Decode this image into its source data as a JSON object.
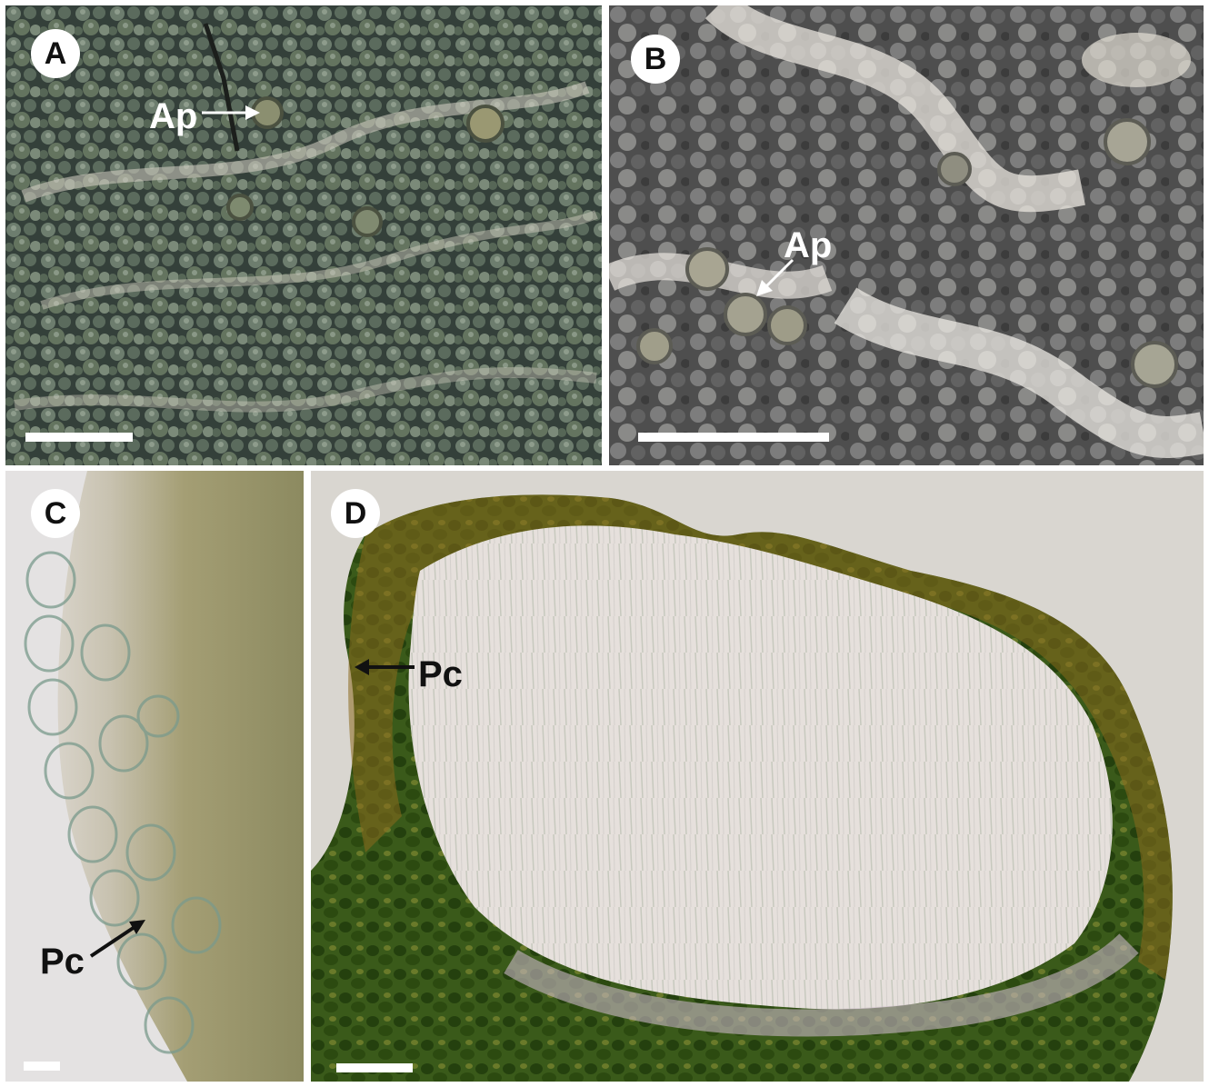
{
  "figure": {
    "panels": [
      {
        "id": "A",
        "letter": "A",
        "annotation": "Ap"
      },
      {
        "id": "B",
        "letter": "B",
        "annotation": "Ap"
      },
      {
        "id": "C",
        "letter": "C",
        "annotation": "Pc"
      },
      {
        "id": "D",
        "letter": "D",
        "annotation": "Pc"
      }
    ]
  },
  "colors": {
    "thallus_green": "#5a6a5c",
    "substrate_white": "#e8e4dc",
    "gray_granules": "#6f6f6f",
    "section_green": "#2f4a14",
    "section_brown": "#8a6a1e",
    "hymenium_pale": "#e6e0dc",
    "background_light": "#d9d6d0"
  }
}
